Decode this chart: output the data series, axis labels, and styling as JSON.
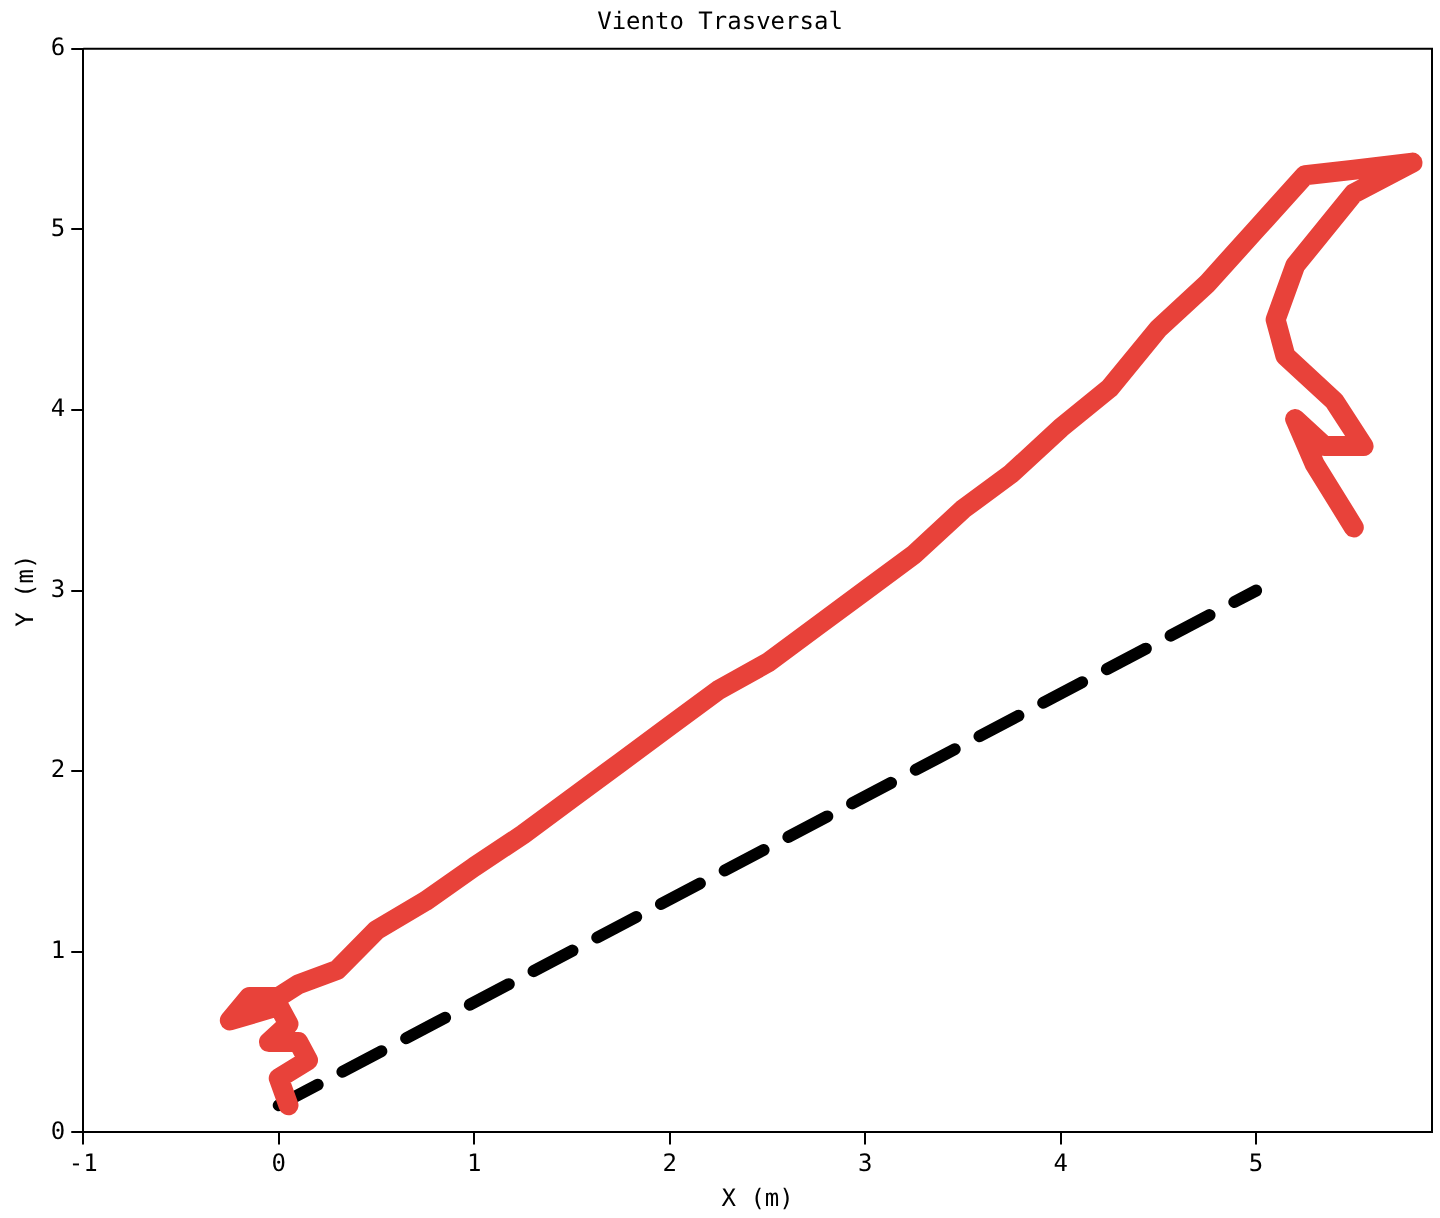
{
  "chart_data": {
    "type": "line",
    "title": "Viento Trasversal",
    "xlabel": "X (m)",
    "ylabel": "Y (m)",
    "xlim": [
      -1,
      5.9
    ],
    "xticks": [
      -1,
      0,
      1,
      2,
      3,
      4,
      5
    ],
    "ylim": [
      0,
      6
    ],
    "yticks": [
      0,
      1,
      2,
      3,
      4,
      5,
      6
    ],
    "grid": false,
    "legend": false,
    "marker": "none",
    "series": [
      {
        "color": "#e8423a",
        "line_style": "solid",
        "x": [
          0.05,
          0.0,
          0.15,
          0.1,
          -0.05,
          0.05,
          0.0,
          -0.25,
          -0.15,
          0.0,
          0.1,
          0.3,
          0.5,
          0.75,
          1.0,
          1.25,
          1.5,
          1.75,
          2.0,
          2.25,
          2.5,
          2.75,
          3.0,
          3.25,
          3.5,
          3.75,
          4.0,
          4.25,
          4.5,
          4.75,
          5.0,
          5.25,
          5.5,
          5.8,
          5.5,
          5.2,
          5.1,
          5.15,
          5.4,
          5.55,
          5.35,
          5.2,
          5.3,
          5.5
        ],
        "values": [
          0.15,
          0.3,
          0.4,
          0.5,
          0.5,
          0.6,
          0.7,
          0.62,
          0.75,
          0.75,
          0.82,
          0.9,
          1.12,
          1.28,
          1.47,
          1.65,
          1.85,
          2.05,
          2.25,
          2.45,
          2.6,
          2.8,
          3.0,
          3.2,
          3.45,
          3.65,
          3.9,
          4.12,
          4.45,
          4.7,
          5.0,
          5.3,
          5.33,
          5.37,
          5.2,
          4.8,
          4.5,
          4.3,
          4.05,
          3.8,
          3.8,
          3.95,
          3.7,
          3.35
        ]
      },
      {
        "color": "#000000",
        "line_style": "dashed",
        "x": [
          0,
          5
        ],
        "values": [
          0.15,
          3.0
        ]
      }
    ]
  }
}
